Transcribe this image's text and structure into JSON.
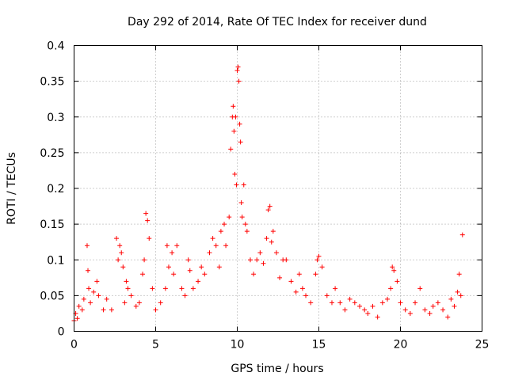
{
  "chart_data": {
    "type": "scatter",
    "title": "Day 292 of 2014, Rate Of TEC Index for receiver dund",
    "xlabel": "GPS time / hours",
    "ylabel": "ROTI / TECUs",
    "xlim": [
      0,
      25
    ],
    "ylim": [
      0,
      0.4
    ],
    "x_ticks": [
      0,
      5,
      10,
      15,
      20,
      25
    ],
    "y_ticks": [
      0,
      0.05,
      0.1,
      0.15,
      0.2,
      0.25,
      0.3,
      0.35,
      0.4
    ],
    "grid": true,
    "marker": "+",
    "color": "#ff0000",
    "series": [
      {
        "x": [
          0.0,
          0.1,
          0.2,
          0.3,
          0.5,
          0.6,
          0.8,
          0.85,
          0.9,
          1.0,
          1.2,
          1.4,
          1.5,
          1.8,
          2.0,
          2.3,
          2.6,
          2.7,
          2.8,
          2.9,
          3.0,
          3.1,
          3.2,
          3.3,
          3.5,
          3.8,
          4.0,
          4.2,
          4.3,
          4.4,
          4.5,
          4.6,
          4.8,
          5.0,
          5.3,
          5.6,
          5.7,
          5.8,
          6.0,
          6.1,
          6.3,
          6.6,
          6.8,
          7.0,
          7.1,
          7.3,
          7.6,
          7.8,
          8.0,
          8.3,
          8.5,
          8.7,
          8.9,
          9.0,
          9.2,
          9.3,
          9.5,
          9.6,
          9.7,
          9.75,
          9.8,
          9.85,
          9.9,
          9.95,
          10.0,
          10.05,
          10.1,
          10.15,
          10.2,
          10.25,
          10.3,
          10.4,
          10.5,
          10.6,
          10.8,
          11.0,
          11.2,
          11.4,
          11.6,
          11.8,
          11.9,
          12.0,
          12.1,
          12.2,
          12.4,
          12.6,
          12.8,
          13.0,
          13.3,
          13.6,
          13.8,
          14.0,
          14.2,
          14.5,
          14.8,
          14.9,
          15.0,
          15.2,
          15.5,
          15.8,
          16.0,
          16.3,
          16.6,
          16.9,
          17.2,
          17.5,
          17.8,
          18.0,
          18.3,
          18.6,
          18.9,
          19.2,
          19.4,
          19.5,
          19.6,
          19.8,
          20.0,
          20.3,
          20.6,
          20.9,
          21.2,
          21.5,
          21.8,
          22.0,
          22.3,
          22.6,
          22.9,
          23.1,
          23.3,
          23.5,
          23.6,
          23.7,
          23.8
        ],
        "y": [
          0.015,
          0.025,
          0.018,
          0.035,
          0.03,
          0.045,
          0.12,
          0.085,
          0.06,
          0.04,
          0.055,
          0.07,
          0.05,
          0.03,
          0.045,
          0.03,
          0.13,
          0.1,
          0.12,
          0.11,
          0.09,
          0.04,
          0.07,
          0.06,
          0.05,
          0.035,
          0.04,
          0.08,
          0.1,
          0.165,
          0.155,
          0.13,
          0.06,
          0.03,
          0.04,
          0.06,
          0.12,
          0.09,
          0.11,
          0.08,
          0.12,
          0.06,
          0.05,
          0.1,
          0.085,
          0.06,
          0.07,
          0.09,
          0.08,
          0.11,
          0.13,
          0.12,
          0.09,
          0.14,
          0.15,
          0.12,
          0.16,
          0.255,
          0.3,
          0.315,
          0.28,
          0.22,
          0.3,
          0.205,
          0.365,
          0.37,
          0.35,
          0.29,
          0.265,
          0.18,
          0.16,
          0.205,
          0.15,
          0.14,
          0.1,
          0.08,
          0.1,
          0.11,
          0.095,
          0.13,
          0.17,
          0.175,
          0.125,
          0.14,
          0.11,
          0.075,
          0.1,
          0.1,
          0.07,
          0.055,
          0.08,
          0.06,
          0.05,
          0.04,
          0.08,
          0.1,
          0.105,
          0.09,
          0.05,
          0.04,
          0.06,
          0.04,
          0.03,
          0.045,
          0.04,
          0.035,
          0.03,
          0.025,
          0.035,
          0.02,
          0.04,
          0.045,
          0.06,
          0.09,
          0.085,
          0.07,
          0.04,
          0.03,
          0.025,
          0.04,
          0.06,
          0.03,
          0.025,
          0.035,
          0.04,
          0.03,
          0.02,
          0.045,
          0.035,
          0.055,
          0.08,
          0.05,
          0.135
        ]
      }
    ]
  }
}
